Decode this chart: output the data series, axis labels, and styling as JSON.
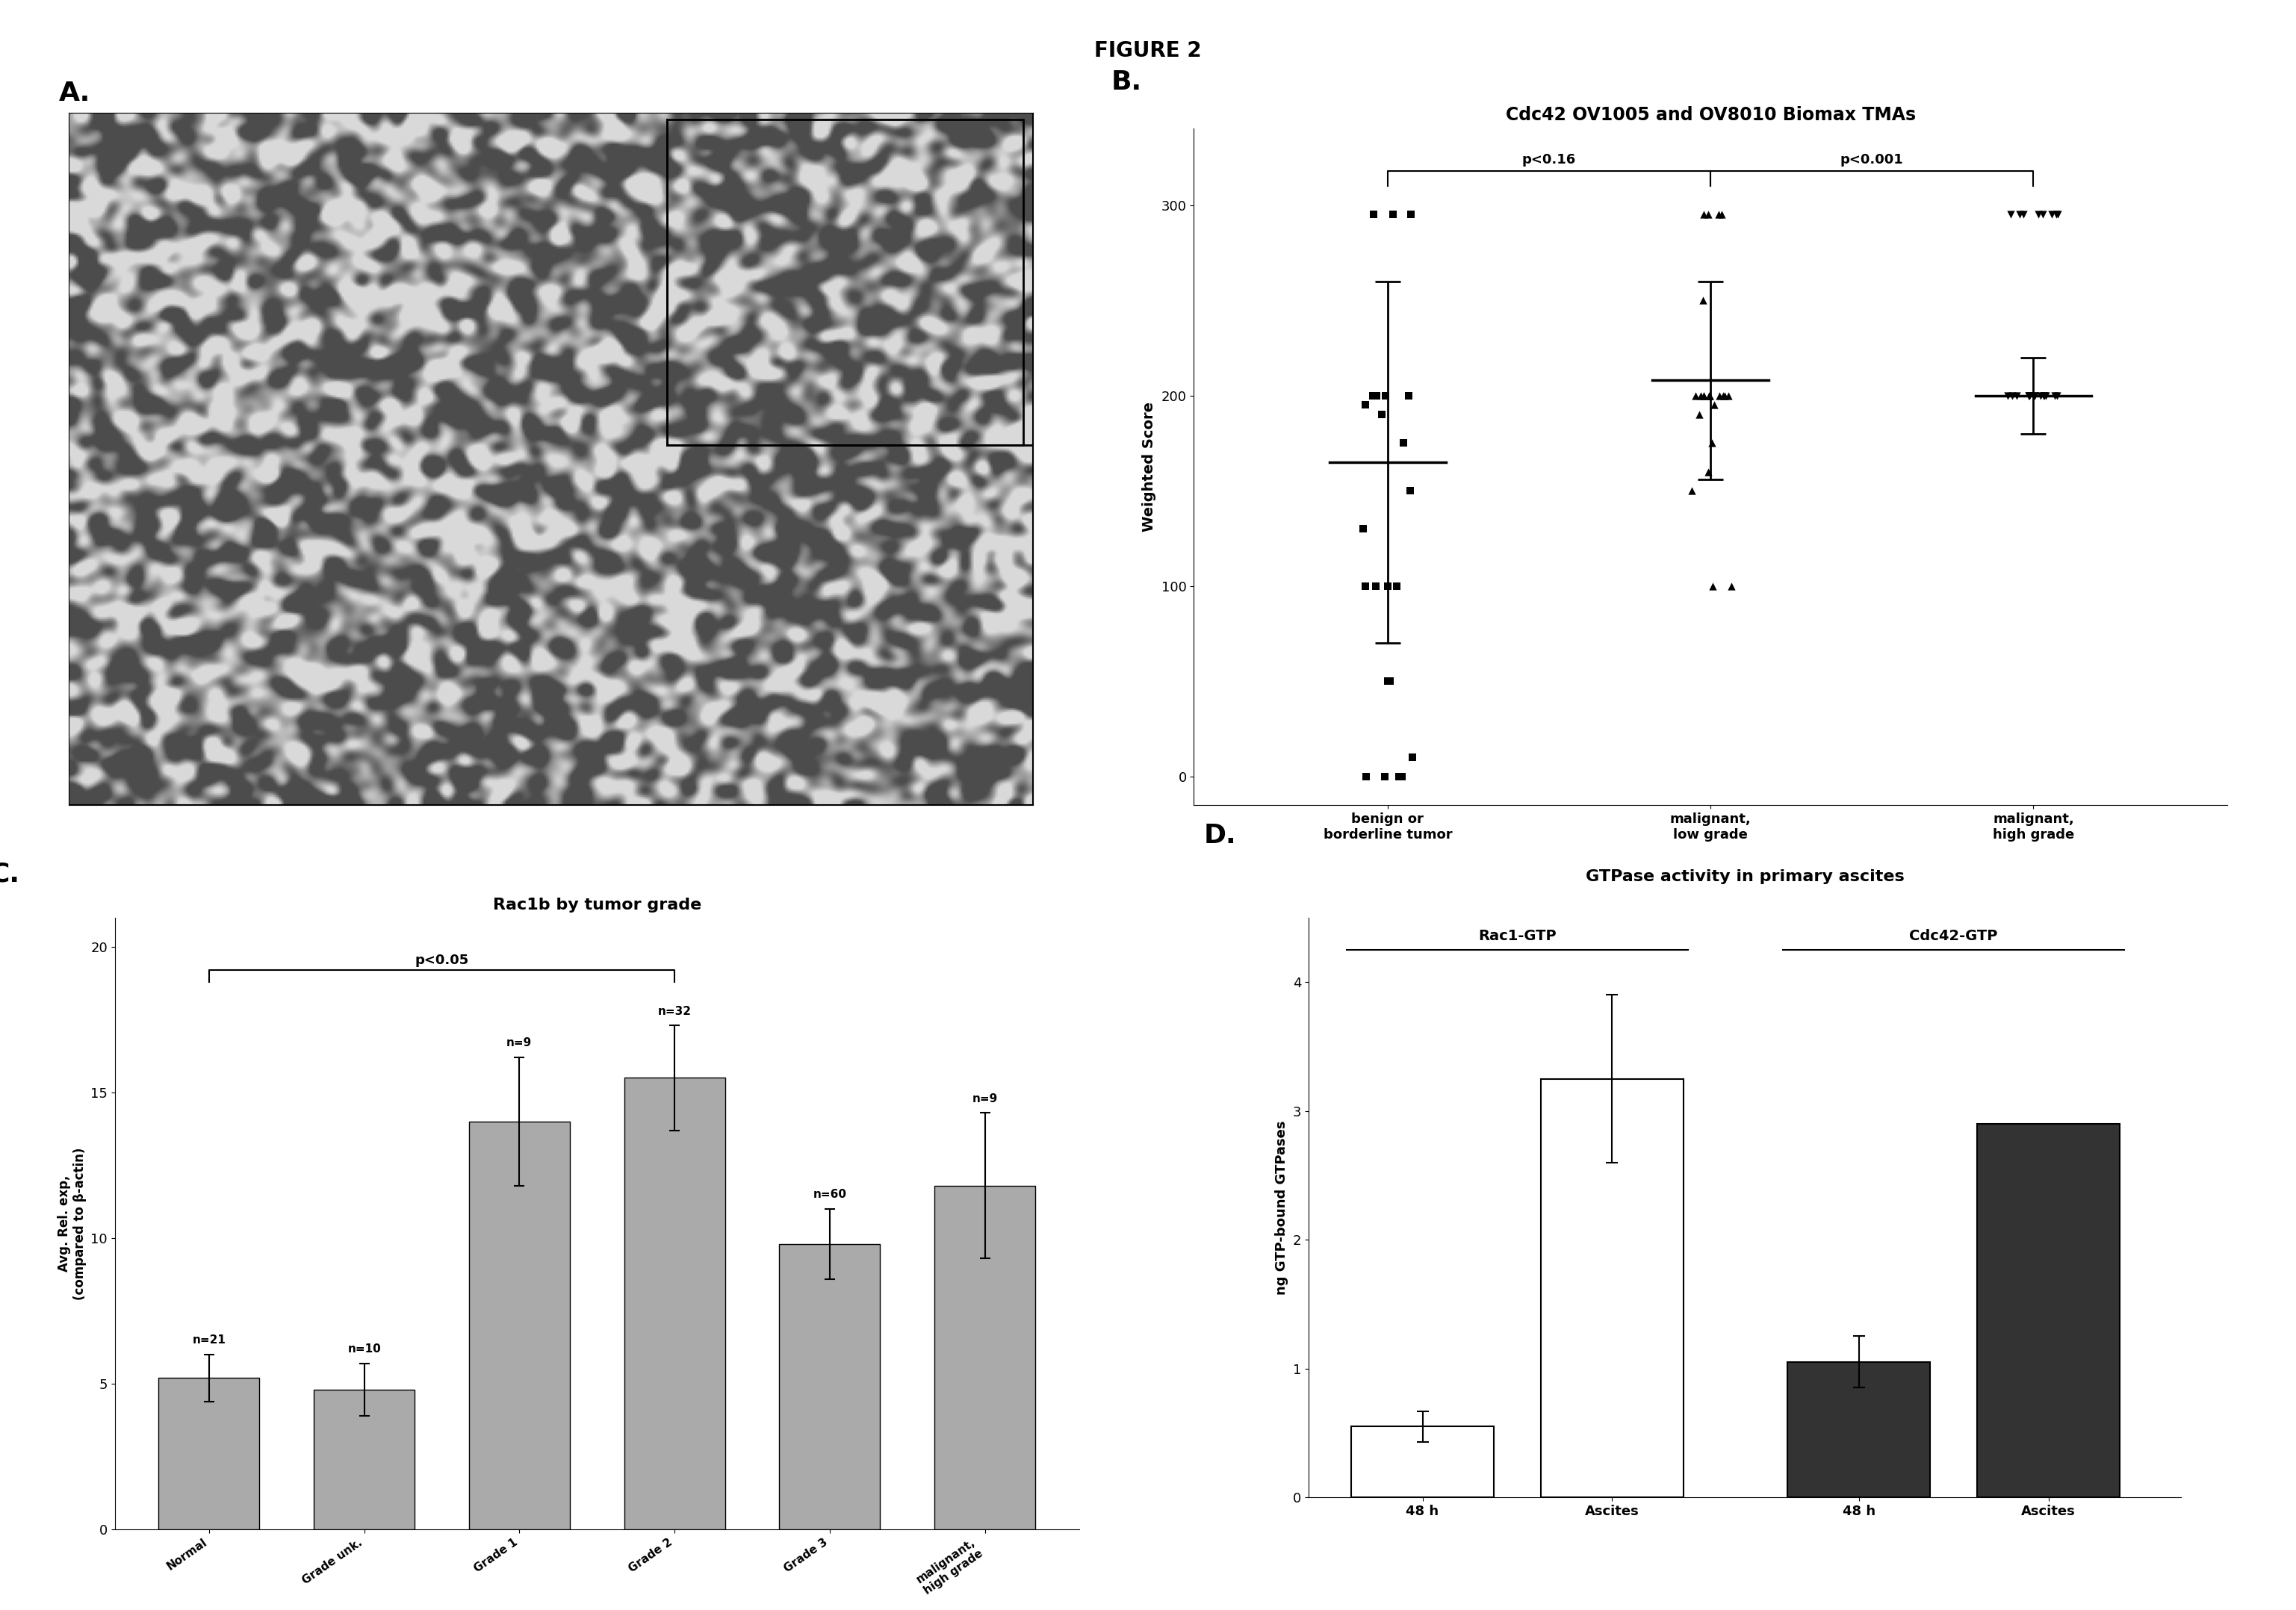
{
  "figure_title": "FIGURE 2",
  "panel_A_label": "A.",
  "panel_B_label": "B.",
  "panel_C_label": "C.",
  "panel_D_label": "D.",
  "panel_B_title": "Cdc42 OV1005 and OV8010 Biomax TMAs",
  "panel_B_ylabel": "Weighted Score",
  "panel_B_xlabel_categories": [
    "benign or\nborderline tumor",
    "malignant,\nlow grade",
    "malignant,\nhigh grade"
  ],
  "panel_B_yticks": [
    0,
    100,
    200,
    300
  ],
  "panel_B_ylim": [
    -15,
    340
  ],
  "panel_B_pval1": "p<0.16",
  "panel_B_pval2": "p<0.001",
  "panel_B_benign_squares": [
    0,
    0,
    0,
    0,
    10,
    50,
    50,
    100,
    100,
    100,
    100,
    175,
    190,
    195,
    200,
    200,
    200,
    200,
    150,
    130,
    295,
    295,
    295
  ],
  "panel_B_malignant_low_triangles": [
    100,
    100,
    150,
    175,
    200,
    200,
    200,
    200,
    200,
    200,
    200,
    200,
    200,
    200,
    200,
    195,
    190,
    160,
    250,
    295,
    295,
    295,
    295
  ],
  "panel_B_malignant_high_invtriangles": [
    200,
    200,
    200,
    200,
    200,
    200,
    200,
    200,
    200,
    200,
    200,
    200,
    200,
    200,
    200,
    295,
    295,
    295,
    295,
    295,
    295,
    295,
    295
  ],
  "panel_B_benign_mean": 165,
  "panel_B_benign_sd": 95,
  "panel_B_malig_low_mean": 208,
  "panel_B_malig_low_sd": 52,
  "panel_B_malig_high_mean": 200,
  "panel_B_malig_high_sd": 20,
  "panel_C_title": "Rac1b by tumor grade",
  "panel_C_ylabel": "Avg. Rel. exp,\n(compared to β-actin)",
  "panel_C_pval": "p<0.05",
  "panel_C_categories": [
    "Normal",
    "Grade unk.",
    "Grade 1",
    "Grade 2",
    "Grade 3",
    "malignant,\nhigh grade"
  ],
  "panel_C_values": [
    5.2,
    4.8,
    14.0,
    15.5,
    9.8,
    11.8
  ],
  "panel_C_errors": [
    0.8,
    0.9,
    2.2,
    1.8,
    1.2,
    2.5
  ],
  "panel_C_n": [
    "n=21",
    "n=10",
    "n=9",
    "n=32",
    "n=60",
    "n=9"
  ],
  "panel_C_bar_color": "#aaaaaa",
  "panel_C_ylim": [
    0,
    21
  ],
  "panel_C_yticks": [
    0,
    5,
    10,
    15,
    20
  ],
  "panel_D_title": "GTPase activity in primary ascites",
  "panel_D_ylabel": "ng GTP-bound GTPases",
  "panel_D_xlabel_categories": [
    "48 h",
    "Ascites",
    "48 h",
    "Ascites"
  ],
  "panel_D_group1_label": "Rac1-GTP",
  "panel_D_group2_label": "Cdc42-GTP",
  "panel_D_values": [
    0.55,
    3.25,
    1.05,
    2.9
  ],
  "panel_D_errors": [
    0.12,
    0.65,
    0.2,
    0.0
  ],
  "panel_D_bar_colors": [
    "#ffffff",
    "#ffffff",
    "#333333",
    "#333333"
  ],
  "panel_D_ylim": [
    0,
    4.5
  ],
  "panel_D_yticks": [
    0,
    1,
    2,
    3,
    4
  ]
}
